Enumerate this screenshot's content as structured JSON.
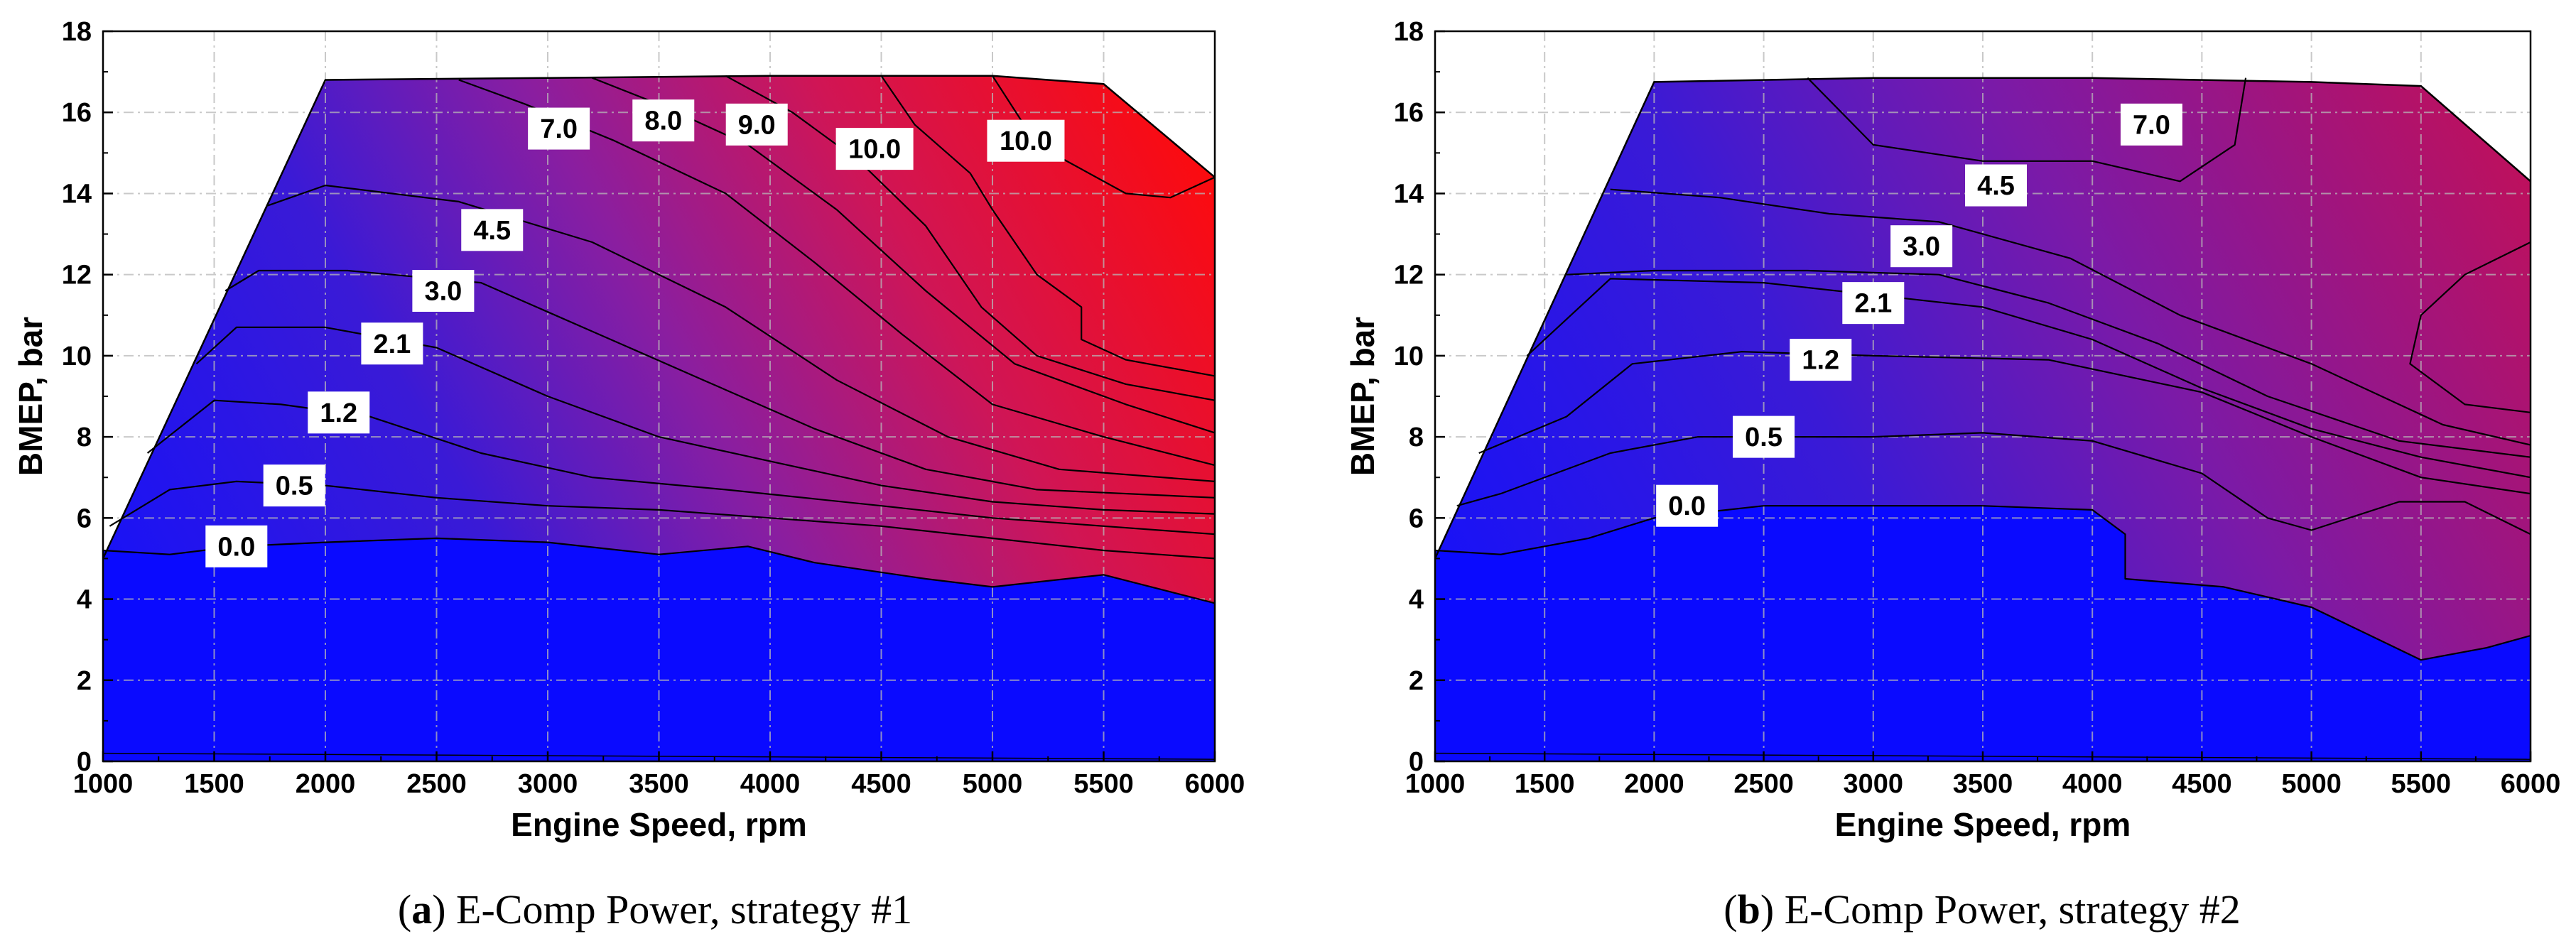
{
  "chart_data": [
    {
      "type": "contour",
      "xlabel": "Engine Speed, rpm",
      "ylabel": "BMEP, bar",
      "xlim": [
        1000,
        6000
      ],
      "ylim": [
        0,
        18
      ],
      "xticks": [
        "1000",
        "1500",
        "2000",
        "2500",
        "3000",
        "3500",
        "4000",
        "4500",
        "5000",
        "5500",
        "6000"
      ],
      "yticks": [
        "0",
        "2",
        "4",
        "6",
        "8",
        "10",
        "12",
        "14",
        "16",
        "18"
      ],
      "grid": true,
      "caption_letter": "a",
      "caption_text": "E-Comp Power, strategy #1",
      "colormap": [
        "#0000ff",
        "#ff0000"
      ],
      "color_range": [
        0,
        10
      ],
      "full_load_boundary": [
        [
          1000,
          5.0
        ],
        [
          2000,
          16.8
        ],
        [
          3000,
          16.85
        ],
        [
          4000,
          16.9
        ],
        [
          5000,
          16.9
        ],
        [
          5500,
          16.7
        ],
        [
          6000,
          14.4
        ]
      ],
      "contour_lines": [
        {
          "level": 0.0,
          "points": [
            [
              1000,
              5.2
            ],
            [
              1300,
              5.1
            ],
            [
              1600,
              5.3
            ],
            [
              2000,
              5.4
            ],
            [
              2500,
              5.5
            ],
            [
              3000,
              5.4
            ],
            [
              3500,
              5.1
            ],
            [
              3900,
              5.3
            ],
            [
              4200,
              4.9
            ],
            [
              4700,
              4.5
            ],
            [
              5000,
              4.3
            ],
            [
              5500,
              4.6
            ],
            [
              6000,
              3.9
            ]
          ]
        },
        {
          "level": 0.5,
          "points": [
            [
              1030,
              5.8
            ],
            [
              1300,
              6.7
            ],
            [
              1600,
              6.9
            ],
            [
              2000,
              6.8
            ],
            [
              2500,
              6.5
            ],
            [
              3000,
              6.3
            ],
            [
              3500,
              6.2
            ],
            [
              4000,
              6.0
            ],
            [
              4500,
              5.8
            ],
            [
              5000,
              5.5
            ],
            [
              5500,
              5.2
            ],
            [
              6000,
              5.0
            ]
          ]
        },
        {
          "level": 1.2,
          "points": [
            [
              1200,
              7.6
            ],
            [
              1500,
              8.9
            ],
            [
              1800,
              8.8
            ],
            [
              2200,
              8.5
            ],
            [
              2700,
              7.6
            ],
            [
              3200,
              7.0
            ],
            [
              3800,
              6.7
            ],
            [
              4500,
              6.3
            ],
            [
              5000,
              6.0
            ],
            [
              5500,
              5.8
            ],
            [
              6000,
              5.6
            ]
          ]
        },
        {
          "level": 2.1,
          "points": [
            [
              1420,
              9.8
            ],
            [
              1600,
              10.7
            ],
            [
              2000,
              10.7
            ],
            [
              2500,
              10.2
            ],
            [
              3000,
              9.0
            ],
            [
              3500,
              8.0
            ],
            [
              4000,
              7.4
            ],
            [
              4500,
              6.8
            ],
            [
              5000,
              6.4
            ],
            [
              5500,
              6.2
            ],
            [
              6000,
              6.1
            ]
          ]
        },
        {
          "level": 3.0,
          "points": [
            [
              1550,
              11.6
            ],
            [
              1700,
              12.1
            ],
            [
              2100,
              12.1
            ],
            [
              2700,
              11.8
            ],
            [
              3200,
              10.6
            ],
            [
              3700,
              9.4
            ],
            [
              4200,
              8.2
            ],
            [
              4700,
              7.2
            ],
            [
              5200,
              6.7
            ],
            [
              6000,
              6.5
            ]
          ]
        },
        {
          "level": 4.5,
          "points": [
            [
              1740,
              13.7
            ],
            [
              2000,
              14.2
            ],
            [
              2600,
              13.8
            ],
            [
              3200,
              12.8
            ],
            [
              3800,
              11.2
            ],
            [
              4300,
              9.4
            ],
            [
              4800,
              8.0
            ],
            [
              5300,
              7.2
            ],
            [
              6000,
              6.9
            ]
          ]
        },
        {
          "level": 7.0,
          "points": [
            [
              2600,
              16.8
            ],
            [
              2900,
              16.2
            ],
            [
              3300,
              15.3
            ],
            [
              3800,
              14.0
            ],
            [
              4200,
              12.3
            ],
            [
              4600,
              10.5
            ],
            [
              5000,
              8.8
            ],
            [
              5500,
              8.0
            ],
            [
              6000,
              7.3
            ]
          ]
        },
        {
          "level": 8.0,
          "points": [
            [
              3200,
              16.85
            ],
            [
              3500,
              16.2
            ],
            [
              3900,
              15.2
            ],
            [
              4300,
              13.6
            ],
            [
              4700,
              11.6
            ],
            [
              5100,
              9.8
            ],
            [
              5600,
              8.8
            ],
            [
              6000,
              8.1
            ]
          ]
        },
        {
          "level": 9.0,
          "points": [
            [
              3800,
              16.9
            ],
            [
              4100,
              16.0
            ],
            [
              4400,
              14.8
            ],
            [
              4700,
              13.2
            ],
            [
              4950,
              11.2
            ],
            [
              5200,
              10.0
            ],
            [
              5600,
              9.3
            ],
            [
              6000,
              8.9
            ]
          ]
        },
        {
          "level": 10.0,
          "points": [
            [
              4500,
              16.9
            ],
            [
              4650,
              15.7
            ],
            [
              4900,
              14.5
            ],
            [
              5000,
              13.6
            ],
            [
              5200,
              12.0
            ],
            [
              5400,
              11.2
            ],
            [
              5400,
              10.4
            ],
            [
              5600,
              9.9
            ],
            [
              6000,
              9.5
            ]
          ]
        },
        {
          "level": 10.0,
          "points": [
            [
              5000,
              16.9
            ],
            [
              5200,
              15.2
            ],
            [
              5600,
              14.0
            ],
            [
              5800,
              13.9
            ],
            [
              6000,
              14.4
            ]
          ]
        }
      ],
      "labels": [
        {
          "text": "0.0",
          "x": 1600,
          "y": 5.3
        },
        {
          "text": "0.5",
          "x": 1860,
          "y": 6.8
        },
        {
          "text": "1.2",
          "x": 2060,
          "y": 8.6
        },
        {
          "text": "2.1",
          "x": 2300,
          "y": 10.3
        },
        {
          "text": "3.0",
          "x": 2530,
          "y": 11.6
        },
        {
          "text": "4.5",
          "x": 2750,
          "y": 13.1
        },
        {
          "text": "7.0",
          "x": 3050,
          "y": 15.6
        },
        {
          "text": "8.0",
          "x": 3520,
          "y": 15.8
        },
        {
          "text": "9.0",
          "x": 3940,
          "y": 15.7
        },
        {
          "text": "10.0",
          "x": 4470,
          "y": 15.1
        },
        {
          "text": "10.0",
          "x": 5150,
          "y": 15.3
        }
      ]
    },
    {
      "type": "contour",
      "xlabel": "Engine Speed, rpm",
      "ylabel": "BMEP, bar",
      "xlim": [
        1000,
        6000
      ],
      "ylim": [
        0,
        18
      ],
      "xticks": [
        "1000",
        "1500",
        "2000",
        "2500",
        "3000",
        "3500",
        "4000",
        "4500",
        "5000",
        "5500",
        "6000"
      ],
      "yticks": [
        "0",
        "2",
        "4",
        "6",
        "8",
        "10",
        "12",
        "14",
        "16",
        "18"
      ],
      "grid": true,
      "caption_letter": "b",
      "caption_text": "E-Comp Power, strategy #2",
      "colormap": [
        "#0000ff",
        "#ff0000"
      ],
      "color_range": [
        0,
        10
      ],
      "full_load_boundary": [
        [
          1000,
          5.0
        ],
        [
          2000,
          16.75
        ],
        [
          3000,
          16.85
        ],
        [
          4000,
          16.85
        ],
        [
          5000,
          16.75
        ],
        [
          5500,
          16.65
        ],
        [
          6000,
          14.3
        ]
      ],
      "contour_lines": [
        {
          "level": 0.0,
          "points": [
            [
              1000,
              5.2
            ],
            [
              1300,
              5.1
            ],
            [
              1700,
              5.5
            ],
            [
              2000,
              6.0
            ],
            [
              2500,
              6.3
            ],
            [
              3500,
              6.3
            ],
            [
              4000,
              6.2
            ],
            [
              4150,
              5.6
            ],
            [
              4150,
              4.5
            ],
            [
              4600,
              4.3
            ],
            [
              5000,
              3.8
            ],
            [
              5500,
              2.5
            ],
            [
              5800,
              2.8
            ],
            [
              6000,
              3.1
            ]
          ]
        },
        {
          "level": 0.5,
          "points": [
            [
              1100,
              6.3
            ],
            [
              1300,
              6.6
            ],
            [
              1800,
              7.6
            ],
            [
              2200,
              8.0
            ],
            [
              3000,
              8.0
            ],
            [
              3500,
              8.1
            ],
            [
              4000,
              7.9
            ],
            [
              4500,
              7.1
            ],
            [
              4800,
              6.0
            ],
            [
              5000,
              5.7
            ],
            [
              5400,
              6.4
            ],
            [
              5700,
              6.4
            ],
            [
              6000,
              5.6
            ]
          ]
        },
        {
          "level": 1.2,
          "points": [
            [
              1200,
              7.6
            ],
            [
              1600,
              8.5
            ],
            [
              1900,
              9.8
            ],
            [
              2400,
              10.1
            ],
            [
              3000,
              10.0
            ],
            [
              3800,
              9.9
            ],
            [
              4500,
              9.1
            ],
            [
              5000,
              8.0
            ],
            [
              5500,
              7.0
            ],
            [
              6000,
              6.6
            ]
          ]
        },
        {
          "level": 2.1,
          "points": [
            [
              1420,
              10.0
            ],
            [
              1800,
              11.9
            ],
            [
              2500,
              11.8
            ],
            [
              3000,
              11.5
            ],
            [
              3500,
              11.2
            ],
            [
              4000,
              10.4
            ],
            [
              4500,
              9.2
            ],
            [
              5000,
              8.2
            ],
            [
              5500,
              7.5
            ],
            [
              6000,
              7.0
            ]
          ]
        },
        {
          "level": 3.0,
          "points": [
            [
              1600,
              12.0
            ],
            [
              2000,
              12.1
            ],
            [
              2700,
              12.1
            ],
            [
              3300,
              12.0
            ],
            [
              3800,
              11.3
            ],
            [
              4300,
              10.3
            ],
            [
              4800,
              9.0
            ],
            [
              5400,
              7.9
            ],
            [
              6000,
              7.5
            ]
          ]
        },
        {
          "level": 4.5,
          "points": [
            [
              1800,
              14.1
            ],
            [
              2300,
              13.9
            ],
            [
              2800,
              13.5
            ],
            [
              3300,
              13.3
            ],
            [
              3900,
              12.4
            ],
            [
              4400,
              11.0
            ],
            [
              5000,
              9.8
            ],
            [
              5600,
              8.3
            ],
            [
              6000,
              7.8
            ]
          ]
        },
        {
          "level": 7.0,
          "points": [
            [
              2700,
              16.85
            ],
            [
              3000,
              15.2
            ],
            [
              3500,
              14.8
            ],
            [
              4000,
              14.8
            ],
            [
              4400,
              14.3
            ],
            [
              4650,
              15.2
            ],
            [
              4700,
              16.85
            ]
          ]
        },
        {
          "level": 7.0,
          "points": [
            [
              6000,
              12.8
            ],
            [
              5700,
              12.0
            ],
            [
              5500,
              11.0
            ],
            [
              5450,
              9.8
            ],
            [
              5700,
              8.8
            ],
            [
              6000,
              8.6
            ]
          ]
        }
      ],
      "labels": [
        {
          "text": "0.0",
          "x": 2150,
          "y": 6.3
        },
        {
          "text": "0.5",
          "x": 2500,
          "y": 8.0
        },
        {
          "text": "1.2",
          "x": 2760,
          "y": 9.9
        },
        {
          "text": "2.1",
          "x": 3000,
          "y": 11.3
        },
        {
          "text": "3.0",
          "x": 3220,
          "y": 12.7
        },
        {
          "text": "4.5",
          "x": 3560,
          "y": 14.2
        },
        {
          "text": "7.0",
          "x": 4270,
          "y": 15.7
        }
      ]
    }
  ]
}
